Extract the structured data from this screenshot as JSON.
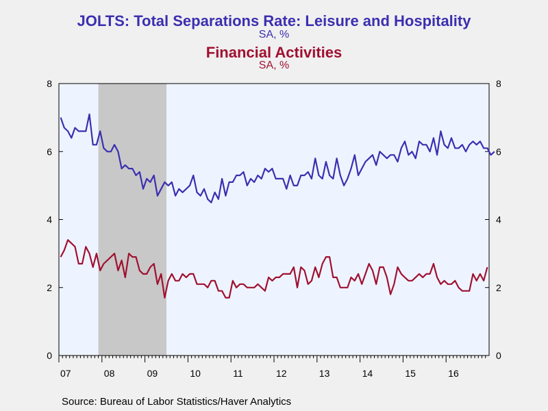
{
  "titles": {
    "series1_title": "JOLTS: Total Separations Rate: Leisure and Hospitality",
    "series1_subtitle": "SA, %",
    "series2_title": "Financial Activities",
    "series2_subtitle": "SA, %"
  },
  "source": "Source:  Bureau of Labor Statistics/Haver Analytics",
  "colors": {
    "series1": "#3b2fb0",
    "series2": "#a01030",
    "plot_bg": "#eef4ff",
    "recession": "#c8c8c8"
  },
  "chart_data": {
    "type": "line",
    "x_start": "2007-01",
    "x_end": "2016-12",
    "x_tick_labels": [
      "07",
      "08",
      "09",
      "10",
      "11",
      "12",
      "13",
      "14",
      "15",
      "16"
    ],
    "ylim": [
      0,
      8
    ],
    "y_ticks": [
      0,
      2,
      4,
      6,
      8
    ],
    "recession": {
      "start": "2007-12",
      "end": "2009-06"
    },
    "series": [
      {
        "name": "Leisure and Hospitality",
        "values": [
          7.0,
          6.7,
          6.6,
          6.4,
          6.7,
          6.6,
          6.6,
          6.6,
          7.1,
          6.2,
          6.2,
          6.6,
          6.1,
          6.0,
          6.0,
          6.2,
          6.0,
          5.5,
          5.6,
          5.5,
          5.5,
          5.3,
          5.4,
          4.9,
          5.2,
          5.1,
          5.3,
          4.7,
          4.9,
          5.1,
          5.0,
          5.1,
          4.7,
          4.9,
          4.8,
          4.9,
          5.0,
          5.3,
          4.8,
          4.7,
          4.9,
          4.6,
          4.5,
          4.8,
          4.6,
          5.2,
          4.7,
          5.1,
          5.1,
          5.3,
          5.3,
          5.4,
          5.0,
          5.2,
          5.1,
          5.3,
          5.2,
          5.5,
          5.4,
          5.5,
          5.2,
          5.2,
          5.2,
          4.9,
          5.3,
          5.0,
          5.0,
          5.3,
          5.3,
          5.4,
          5.2,
          5.8,
          5.3,
          5.2,
          5.7,
          5.3,
          5.2,
          5.8,
          5.3,
          5.0,
          5.2,
          5.5,
          5.9,
          5.3,
          5.5,
          5.7,
          5.8,
          5.9,
          5.6,
          6.0,
          5.9,
          5.8,
          5.9,
          5.9,
          5.7,
          6.1,
          6.3,
          5.9,
          6.0,
          5.8,
          6.3,
          6.2,
          6.2,
          6.0,
          6.4,
          5.9,
          6.6,
          6.2,
          6.1,
          6.4,
          6.1,
          6.1,
          6.2,
          6.0,
          6.2,
          6.3,
          6.2,
          6.3,
          6.1,
          6.1,
          5.9,
          6.0
        ]
      },
      {
        "name": "Financial Activities",
        "values": [
          2.9,
          3.1,
          3.4,
          3.3,
          3.2,
          2.7,
          2.7,
          3.2,
          3.0,
          2.6,
          3.0,
          2.5,
          2.7,
          2.8,
          2.9,
          3.0,
          2.5,
          2.8,
          2.3,
          3.0,
          2.9,
          2.9,
          2.5,
          2.4,
          2.4,
          2.6,
          2.7,
          2.1,
          2.4,
          1.7,
          2.2,
          2.4,
          2.2,
          2.2,
          2.4,
          2.3,
          2.4,
          2.4,
          2.1,
          2.1,
          2.1,
          2.0,
          2.2,
          2.2,
          1.9,
          1.9,
          1.7,
          1.7,
          2.2,
          2.0,
          2.1,
          2.1,
          2.0,
          2.0,
          2.0,
          2.1,
          2.0,
          1.9,
          2.3,
          2.2,
          2.3,
          2.3,
          2.4,
          2.4,
          2.4,
          2.6,
          2.0,
          2.6,
          2.5,
          2.1,
          2.2,
          2.6,
          2.3,
          2.7,
          2.9,
          2.9,
          2.3,
          2.3,
          2.0,
          2.0,
          2.0,
          2.3,
          2.2,
          2.4,
          2.1,
          2.4,
          2.7,
          2.5,
          2.1,
          2.6,
          2.6,
          2.3,
          1.8,
          2.1,
          2.6,
          2.4,
          2.3,
          2.2,
          2.2,
          2.3,
          2.4,
          2.3,
          2.4,
          2.4,
          2.7,
          2.3,
          2.1,
          2.2,
          2.1,
          2.1,
          2.2,
          2.0,
          1.9,
          1.9,
          1.9,
          2.4,
          2.2,
          2.4,
          2.2,
          2.6
        ]
      }
    ]
  }
}
